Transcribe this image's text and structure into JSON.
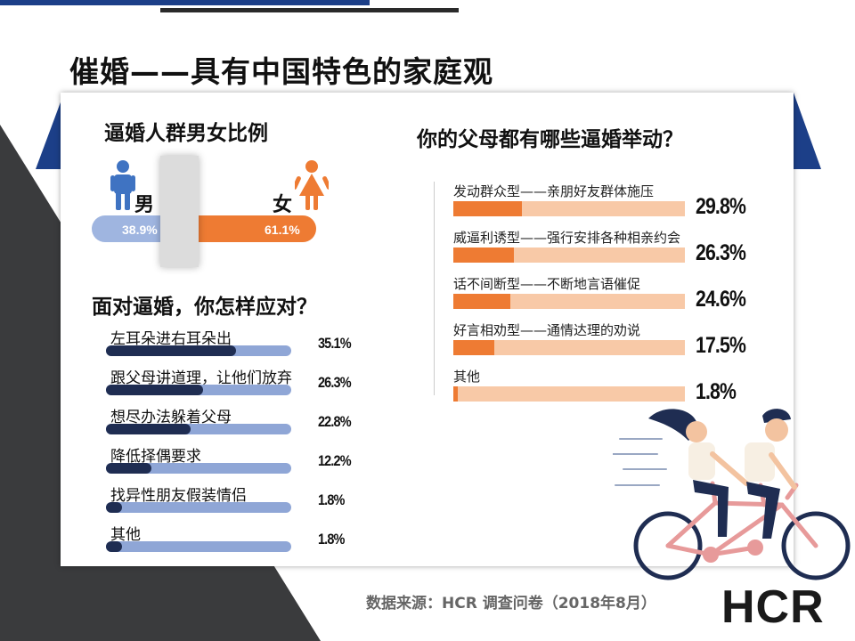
{
  "title": "催婚——具有中国特色的家庭观",
  "colors": {
    "navy": "#1c3f88",
    "dark_navy": "#1f2d52",
    "light_blue": "#8fa6d6",
    "orange": "#ee7b33",
    "peach": "#f8c9a7",
    "male_icon": "#3f73c2",
    "female_icon": "#ee7b33"
  },
  "gender": {
    "title": "逼婚人群男女比例",
    "male_label": "男",
    "female_label": "女",
    "male_icon": "male-person-icon",
    "female_icon": "female-person-icon",
    "male_pct": "38.9%",
    "female_pct": "61.1%"
  },
  "responses": {
    "title": "面对逼婚，你怎样应对？"
  },
  "actions": {
    "title": "你的父母都有哪些逼婚举动？"
  },
  "footer": "数据来源：HCR 调查问卷（2018年8月）",
  "logo": "HCR",
  "illustration": "couple-on-tandem-bicycle",
  "chart_data": [
    {
      "type": "bar",
      "title": "逼婚人群男女比例",
      "categories": [
        "男",
        "女"
      ],
      "values": [
        38.9,
        61.1
      ],
      "unit": "%"
    },
    {
      "type": "bar",
      "orientation": "horizontal",
      "title": "面对逼婚，你怎样应对？",
      "categories": [
        "左耳朵进右耳朵出",
        "跟父母讲道理，让他们放弃",
        "想尽办法躲着父母",
        "降低择偶要求",
        "找异性朋友假装情侣",
        "其他"
      ],
      "values": [
        35.1,
        26.3,
        22.8,
        12.2,
        1.8,
        1.8
      ],
      "value_labels": [
        "35.1%",
        "26.3%",
        "22.8%",
        "12.2%",
        "1.8%",
        "1.8%"
      ],
      "ylim": [
        0,
        50
      ]
    },
    {
      "type": "bar",
      "orientation": "horizontal",
      "title": "你的父母都有哪些逼婚举动？",
      "categories": [
        "发动群众型——亲朋好友群体施压",
        "威逼利诱型——强行安排各种相亲约会",
        "话不间断型——不断地言语催促",
        "好言相劝型——通情达理的劝说",
        "其他"
      ],
      "values": [
        29.8,
        26.3,
        24.6,
        17.5,
        1.8
      ],
      "value_labels": [
        "29.8%",
        "26.3%",
        "24.6%",
        "17.5%",
        "1.8%"
      ],
      "ylim": [
        0,
        100
      ]
    }
  ]
}
